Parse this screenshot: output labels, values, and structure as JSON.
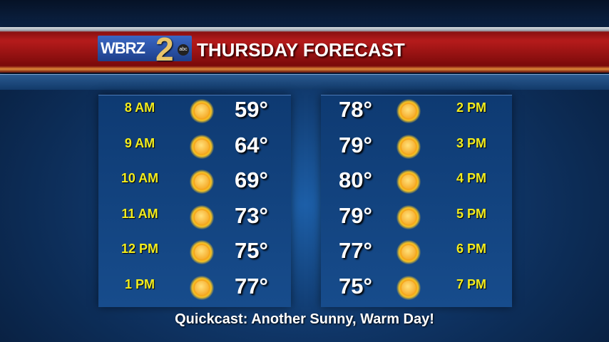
{
  "header": {
    "station_logo": "WBRZ 2 abc",
    "title": "THURSDAY FORECAST"
  },
  "colors": {
    "time_label": "#f2ec1e",
    "banner": "#b51b1b",
    "panel": "#174c8c"
  },
  "left_column": [
    {
      "time": "8 AM",
      "temp": "59°",
      "icon": "sun-icon"
    },
    {
      "time": "9 AM",
      "temp": "64°",
      "icon": "sun-icon"
    },
    {
      "time": "10 AM",
      "temp": "69°",
      "icon": "sun-icon"
    },
    {
      "time": "11 AM",
      "temp": "73°",
      "icon": "sun-icon"
    },
    {
      "time": "12 PM",
      "temp": "75°",
      "icon": "sun-icon"
    },
    {
      "time": "1 PM",
      "temp": "77°",
      "icon": "sun-icon"
    }
  ],
  "right_column": [
    {
      "time": "2 PM",
      "temp": "78°",
      "icon": "sun-icon"
    },
    {
      "time": "3 PM",
      "temp": "79°",
      "icon": "sun-icon"
    },
    {
      "time": "4 PM",
      "temp": "80°",
      "icon": "sun-icon"
    },
    {
      "time": "5 PM",
      "temp": "79°",
      "icon": "sun-icon"
    },
    {
      "time": "6 PM",
      "temp": "77°",
      "icon": "sun-icon"
    },
    {
      "time": "7 PM",
      "temp": "75°",
      "icon": "sun-icon"
    }
  ],
  "footer": {
    "quickcast": "Quickcast: Another Sunny, Warm Day!"
  }
}
